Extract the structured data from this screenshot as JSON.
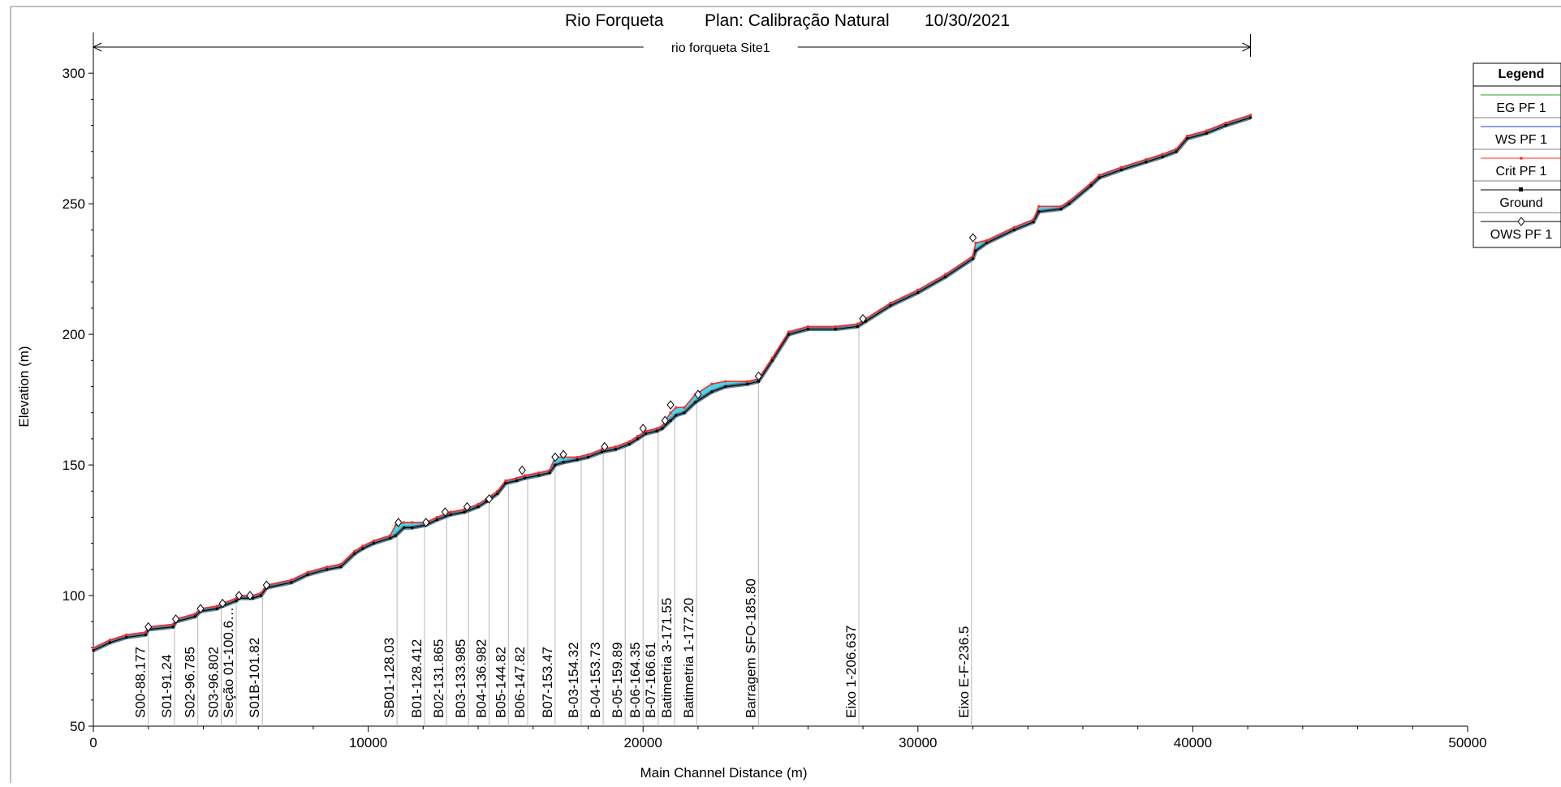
{
  "title": {
    "river": "Rio Forqueta",
    "plan": "Plan: Calibração Natural",
    "date": "10/30/2021"
  },
  "reach_label": "rio forqueta Site1",
  "colors": {
    "eg": "#2ca02c",
    "ws": "#1f3fd6",
    "crit": "#ff2a2a",
    "ground": "#000000",
    "ows": "#000000",
    "water_fill": "#22d3e6",
    "channel": "#5b7f93",
    "station_line": "#b8b8b8"
  },
  "chart_data": {
    "type": "line",
    "title": "Rio Forqueta      Plan: Calibração Natural     10/30/2021",
    "xlabel": "Main Channel Distance (m)",
    "ylabel": "Elevation (m)",
    "xlim": [
      0,
      50000
    ],
    "ylim": [
      50,
      310
    ],
    "xticks": [
      0,
      10000,
      20000,
      30000,
      40000,
      50000
    ],
    "xtick_labels": [
      "0",
      "10000",
      "20000",
      "30000",
      "40000",
      "50000"
    ],
    "yticks": [
      50,
      100,
      150,
      200,
      250,
      300
    ],
    "ytick_labels": [
      "50",
      "100",
      "150",
      "200",
      "250",
      "300"
    ],
    "grid": false,
    "legend_position": "right",
    "reach": {
      "label": "rio forqueta Site1",
      "x_start": 0,
      "x_end": 42100
    },
    "legend": [
      {
        "label": "EG  PF 1",
        "style": "line",
        "color": "#2ca02c"
      },
      {
        "label": "WS  PF 1",
        "style": "line",
        "color": "#1f3fd6"
      },
      {
        "label": "Crit  PF 1",
        "style": "line-dot",
        "color": "#ff2a2a"
      },
      {
        "label": "Ground",
        "style": "line-square",
        "color": "#000000"
      },
      {
        "label": "OWS  PF 1",
        "style": "line-diamond",
        "color": "#000000"
      }
    ],
    "series": [
      {
        "name": "Ground",
        "x": [
          0,
          600,
          1200,
          1900,
          2000,
          2900,
          3000,
          3700,
          3900,
          4500,
          4700,
          5200,
          5300,
          5800,
          6100,
          6300,
          7200,
          7800,
          8500,
          9000,
          9500,
          9800,
          10200,
          10800,
          11000,
          11300,
          11600,
          12100,
          12500,
          13000,
          13500,
          14000,
          14300,
          14700,
          15000,
          15400,
          15700,
          16200,
          16600,
          16800,
          17100,
          17600,
          18000,
          18500,
          19000,
          19500,
          19800,
          20100,
          20500,
          20700,
          21000,
          21200,
          21500,
          21900,
          22500,
          23000,
          23800,
          24200,
          24700,
          25300,
          26000,
          27000,
          27800,
          28100,
          29000,
          30000,
          31000,
          32000,
          32100,
          32500,
          33500,
          34200,
          34400,
          35200,
          35500,
          36300,
          36600,
          37400,
          38300,
          38900,
          39400,
          39800,
          40500,
          41200,
          42100
        ],
        "y": [
          79,
          82,
          84,
          85,
          87,
          88,
          90,
          92,
          94,
          95,
          96,
          98,
          99,
          99,
          100,
          103,
          105,
          108,
          110,
          111,
          116,
          118,
          120,
          122,
          123,
          126,
          126,
          127,
          129,
          131,
          132,
          134,
          136,
          139,
          143,
          144,
          145,
          146,
          147,
          150,
          151,
          152,
          153,
          155,
          156,
          158,
          160,
          162,
          163,
          164,
          167,
          169,
          170,
          174,
          178,
          180,
          181,
          182,
          190,
          200,
          202,
          202,
          203,
          205,
          211,
          216,
          222,
          229,
          232,
          235,
          240,
          243,
          247,
          248,
          250,
          257,
          260,
          263,
          266,
          268,
          270,
          275,
          277,
          280,
          283
        ]
      },
      {
        "name": "WS  PF 1",
        "x": [
          0,
          600,
          1200,
          1900,
          2000,
          2900,
          3000,
          3700,
          3900,
          4500,
          4700,
          5200,
          5300,
          5800,
          6100,
          6300,
          7200,
          7800,
          8500,
          9000,
          9500,
          9800,
          10200,
          10800,
          11000,
          11300,
          11600,
          12100,
          12500,
          13000,
          13500,
          14000,
          14300,
          14700,
          15000,
          15400,
          15700,
          16200,
          16600,
          16800,
          17100,
          17600,
          18000,
          18500,
          19000,
          19500,
          19800,
          20100,
          20500,
          20700,
          21000,
          21200,
          21500,
          21900,
          22500,
          23000,
          23800,
          24200,
          24700,
          25300,
          26000,
          27000,
          27800,
          28100,
          29000,
          30000,
          31000,
          32000,
          32100,
          32500,
          33500,
          34200,
          34400,
          35200,
          35500,
          36300,
          36600,
          37400,
          38300,
          38900,
          39400,
          39800,
          40500,
          41200,
          42100
        ],
        "y": [
          80,
          83,
          85,
          86,
          88,
          89,
          91,
          93,
          95,
          96,
          97,
          99,
          100,
          100,
          101,
          104,
          106,
          109,
          111,
          112,
          117,
          119,
          121,
          123,
          127,
          128,
          128,
          128,
          130,
          132,
          133,
          135,
          137,
          140,
          144,
          145,
          146,
          147,
          148,
          153,
          153,
          153,
          154,
          156,
          157,
          159,
          161,
          163,
          164,
          165,
          170,
          172,
          172,
          177,
          181,
          182,
          182,
          183,
          191,
          201,
          203,
          203,
          204,
          206,
          212,
          217,
          223,
          230,
          235,
          236,
          241,
          244,
          249,
          249,
          251,
          258,
          261,
          264,
          267,
          269,
          271,
          276,
          278,
          281,
          284
        ]
      },
      {
        "name": "OWS  PF 1",
        "x": [
          2000,
          3000,
          3900,
          4700,
          5300,
          5700,
          6300,
          11100,
          12100,
          12800,
          13600,
          14400,
          15600,
          16800,
          17100,
          18600,
          20000,
          20800,
          21000,
          22000,
          24200,
          28000,
          32000
        ],
        "y": [
          88,
          91,
          95,
          97,
          100,
          100,
          104,
          128,
          128,
          132,
          134,
          137,
          148,
          153,
          154,
          157,
          164,
          167,
          173,
          177,
          184,
          206,
          237
        ]
      }
    ],
    "stations": [
      {
        "label": "S00-88.177",
        "x": 2000
      },
      {
        "label": "S01-91.24",
        "x": 2950
      },
      {
        "label": "S02-96.785",
        "x": 3800
      },
      {
        "label": "S03-96.802",
        "x": 4650
      },
      {
        "label": "Seção 01-100.6…",
        "x": 5200
      },
      {
        "label": "S01B-101.82",
        "x": 6150
      },
      {
        "label": "SB01-128.03",
        "x": 11050
      },
      {
        "label": "B01-128.412",
        "x": 12050
      },
      {
        "label": "B02-131.865",
        "x": 12850
      },
      {
        "label": "B03-133.985",
        "x": 13650
      },
      {
        "label": "B04-136.982",
        "x": 14400
      },
      {
        "label": "B05-144.82",
        "x": 15100
      },
      {
        "label": "B06-147.82",
        "x": 15800
      },
      {
        "label": "B07-153.47",
        "x": 16800
      },
      {
        "label": "B-03-154.32",
        "x": 17750
      },
      {
        "label": "B-04-153.73",
        "x": 18550
      },
      {
        "label": "B-05-159.89",
        "x": 19350
      },
      {
        "label": "B-06-164.35",
        "x": 20000
      },
      {
        "label": "B-07-166.61",
        "x": 20550
      },
      {
        "label": "Batimetria 3-171.55",
        "x": 21150
      },
      {
        "label": "Batimetria 1-177.20",
        "x": 21950
      },
      {
        "label": "Barragem SFO-185.80",
        "x": 24200
      },
      {
        "label": "Eixo 1-206.637",
        "x": 27850
      },
      {
        "label": "Eixo E-F-236.5",
        "x": 31950
      }
    ]
  }
}
